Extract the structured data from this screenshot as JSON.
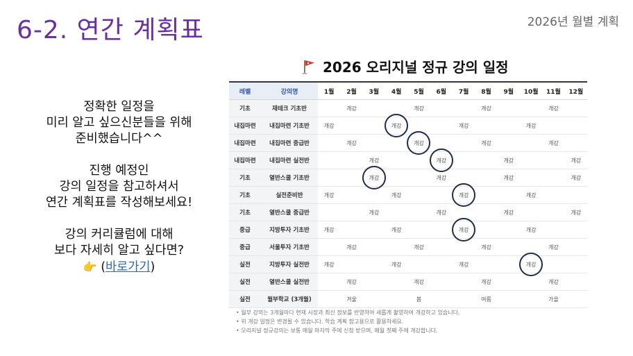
{
  "page": {
    "title": "6-2. 연간 계획표",
    "subtitle": "2026년 월별 계획"
  },
  "intro": {
    "para1": [
      "정확한 일정을",
      "미리 알고 싶으신분들을 위해",
      "준비했습니다^^"
    ],
    "para2": [
      "진행 예정인",
      "강의 일정을 참고하셔서",
      "연간 계획표를 작성해보세요!"
    ],
    "para3": [
      "강의 커리큘럼에 대해",
      "보다 자세히 알고 싶다면?"
    ],
    "link_prefix": "(",
    "link_label": "바로가기",
    "link_suffix": ")",
    "pointer_icon": "pointing-hand-icon"
  },
  "schedule": {
    "title": "2026 오리지널 정규 강의 일정",
    "title_icon": "red-flag-icon",
    "headers": [
      "레벨",
      "강의명",
      "1월",
      "2월",
      "3월",
      "4월",
      "5월",
      "6월",
      "7월",
      "8월",
      "9월",
      "10월",
      "11월",
      "12월"
    ],
    "rows": [
      {
        "level": "기초",
        "name": "재테크 기초반",
        "cells": [
          "",
          "개강",
          "",
          "",
          "개강",
          "",
          "",
          "개강",
          "",
          "",
          "개강",
          ""
        ],
        "circled": []
      },
      {
        "level": "내집마련",
        "name": "내집마련 기초반",
        "cells": [
          "개강",
          "",
          "",
          "개강",
          "",
          "",
          "개강",
          "",
          "",
          "개강",
          "",
          ""
        ],
        "circled": [
          3
        ]
      },
      {
        "level": "내집마련",
        "name": "내집마련 중급반",
        "cells": [
          "",
          "개강",
          "",
          "",
          "개강",
          "",
          "",
          "개강",
          "",
          "",
          "개강",
          ""
        ],
        "circled": [
          4
        ]
      },
      {
        "level": "내집마련",
        "name": "내집마련 실전반",
        "cells": [
          "",
          "",
          "개강",
          "",
          "",
          "개강",
          "",
          "",
          "개강",
          "",
          "",
          "개강"
        ],
        "circled": [
          5
        ]
      },
      {
        "level": "기초",
        "name": "열반스쿨 기초반",
        "cells": [
          "",
          "",
          "개강",
          "",
          "",
          "개강",
          "",
          "",
          "개강",
          "",
          "",
          "개강"
        ],
        "circled": [
          2
        ]
      },
      {
        "level": "기초",
        "name": "실전준비반",
        "cells": [
          "개강",
          "",
          "",
          "개강",
          "",
          "",
          "개강",
          "",
          "",
          "개강",
          "",
          ""
        ],
        "circled": [
          6
        ]
      },
      {
        "level": "기초",
        "name": "열반스쿨 중급반",
        "cells": [
          "",
          "",
          "개강",
          "",
          "",
          "개강",
          "",
          "",
          "개강",
          "",
          "",
          "개강"
        ],
        "circled": []
      },
      {
        "level": "중급",
        "name": "지방투자 기초반",
        "cells": [
          "개강",
          "",
          "",
          "개강",
          "",
          "",
          "개강",
          "",
          "",
          "개강",
          "",
          ""
        ],
        "circled": [
          6
        ]
      },
      {
        "level": "중급",
        "name": "서울투자 기초반",
        "cells": [
          "",
          "개강",
          "",
          "",
          "개강",
          "",
          "",
          "개강",
          "",
          "",
          "개강",
          ""
        ],
        "circled": []
      },
      {
        "level": "실전",
        "name": "지방투자 실전반",
        "cells": [
          "개강",
          "",
          "",
          "개강",
          "",
          "",
          "개강",
          "",
          "",
          "개강",
          "",
          ""
        ],
        "circled": [
          9
        ]
      },
      {
        "level": "실전",
        "name": "열반스쿨 실전반",
        "cells": [
          "",
          "개강",
          "",
          "",
          "개강",
          "",
          "",
          "개강",
          "",
          "",
          "개강",
          ""
        ],
        "circled": []
      },
      {
        "level": "실전",
        "name": "월부학교 (3개월)",
        "cells": [
          "",
          "겨울",
          "",
          "",
          "봄",
          "",
          "",
          "여름",
          "",
          "",
          "가을",
          ""
        ],
        "circled": []
      }
    ],
    "notes": [
      "월부 강의는 3개월마다 현재 시장과 최신 정보를 반영하여 새롭게 촬영하여 개강하고 있습니다.",
      "위 개강 일정은 변경될 수 있습니다. 학습 계획 참고용으로 활용하세요.",
      "오리지널 정규강의는 보통 매월 마지막 주에 신청 받으며, 매월 첫째 주에 개강합니다."
    ]
  }
}
